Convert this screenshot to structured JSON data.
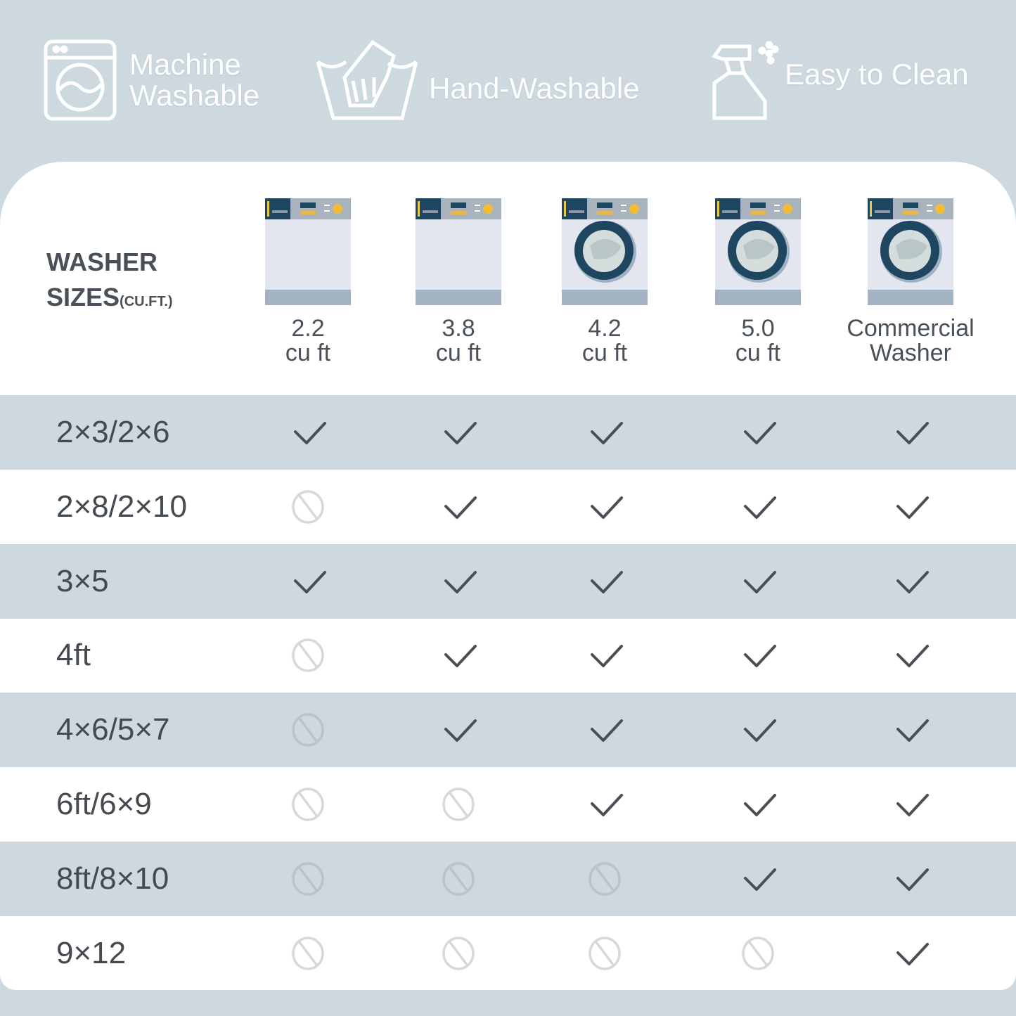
{
  "features": [
    {
      "icon": "washing-machine-icon",
      "label_lines": [
        "Machine",
        "Washable"
      ]
    },
    {
      "icon": "hand-wash-basin-icon",
      "label_lines": [
        "Hand-Washable"
      ]
    },
    {
      "icon": "spray-bottle-icon",
      "label_lines": [
        "Easy to Clean"
      ]
    }
  ],
  "table": {
    "header_title": "WASHER",
    "header_title_line2": "SIZES",
    "header_unit": "(CU.FT.)",
    "columns": [
      {
        "line1": "2.2",
        "line2": "cu ft",
        "door": false
      },
      {
        "line1": "3.8",
        "line2": "cu ft",
        "door": false
      },
      {
        "line1": "4.2",
        "line2": "cu ft",
        "door": true
      },
      {
        "line1": "5.0",
        "line2": "cu ft",
        "door": true
      },
      {
        "line1": "Commercial",
        "line2": "Washer",
        "door": true
      }
    ],
    "rows": [
      {
        "label": "2×3/2×6",
        "fits": [
          true,
          true,
          true,
          true,
          true
        ]
      },
      {
        "label": "2×8/2×10",
        "fits": [
          false,
          true,
          true,
          true,
          true
        ]
      },
      {
        "label": "3×5",
        "fits": [
          true,
          true,
          true,
          true,
          true
        ]
      },
      {
        "label": "4ft",
        "fits": [
          false,
          true,
          true,
          true,
          true
        ]
      },
      {
        "label": "4×6/5×7",
        "fits": [
          false,
          true,
          true,
          true,
          true
        ]
      },
      {
        "label": "6ft/6×9",
        "fits": [
          false,
          false,
          true,
          true,
          true
        ]
      },
      {
        "label": "8ft/8×10",
        "fits": [
          false,
          false,
          false,
          true,
          true
        ]
      },
      {
        "label": "9×12",
        "fits": [
          false,
          false,
          false,
          false,
          true
        ]
      }
    ]
  },
  "colors": {
    "background": "#cdd9df",
    "card": "#ffffff",
    "check": "#4a4f55",
    "not_fit": "#cfd3d6",
    "text": "#4a5058"
  }
}
